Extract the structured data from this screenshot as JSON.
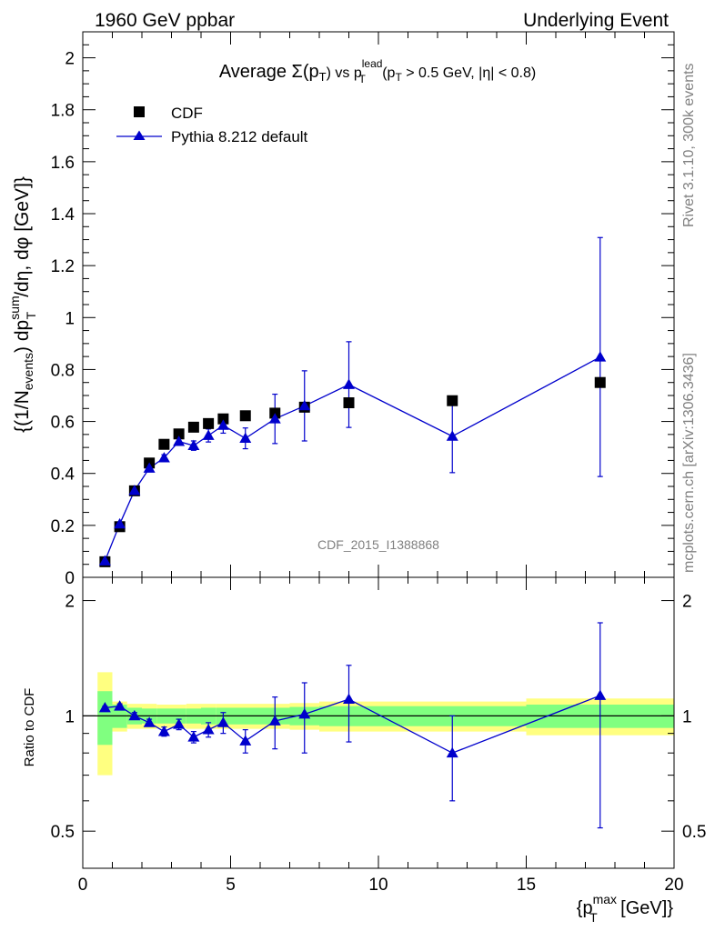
{
  "header": {
    "left": "1960 GeV ppbar",
    "right": "Underlying Event"
  },
  "side_labels": {
    "rivet": "Rivet 3.1.10,  300k events",
    "mcplots": "mcplots.cern.ch [arXiv:1306.3436]"
  },
  "watermark": "CDF_2015_I1388868",
  "colors": {
    "mc": "#0000cc",
    "data": "#000000",
    "band_inner": "#80ff80",
    "band_outer": "#ffff80"
  },
  "chart_data": [
    {
      "type": "scatter",
      "title": "Average Σ(pT) vs pT lead (pT > 0.5 GeV, |η| < 0.8)",
      "title_parts": {
        "main": "Average ",
        "sigma": "Σ(p",
        "sub_t1": "T",
        "close": ") vs p",
        "sup_lead": "lead",
        "sub_t2": "T",
        "cut_open": " (p",
        "sub_t3": "T",
        "cut_rest": " > 0.5 GeV, |η| < 0.8)"
      },
      "ylabel": "{(1/Nevents) dpTsum/dη, dφ [GeV]}",
      "ylabel_parts": {
        "pre": "{(1/N",
        "sub_events": "events",
        "mid": ") dp",
        "sup_sum": "sum",
        "sub_T": "T",
        "post": "/dη, dφ [GeV]}"
      },
      "xlim": [
        0,
        20
      ],
      "ylim": [
        0,
        2.1
      ],
      "xticks": [
        0,
        5,
        10,
        15,
        20
      ],
      "yticks": [
        0,
        0.2,
        0.4,
        0.6,
        0.8,
        1,
        1.2,
        1.4,
        1.6,
        1.8,
        2
      ],
      "ytick_labels": [
        "0",
        "0.2",
        "0.4",
        "0.6",
        "0.8",
        "1",
        "1.2",
        "1.4",
        "1.6",
        "1.8",
        "2"
      ],
      "legend": {
        "position": "top-left",
        "entries": [
          "CDF",
          "Pythia 8.212 default"
        ]
      },
      "series": [
        {
          "name": "CDF",
          "marker": "square",
          "x": [
            0.75,
            1.25,
            1.75,
            2.25,
            2.75,
            3.25,
            3.75,
            4.25,
            4.75,
            5.5,
            6.5,
            7.5,
            9.0,
            12.5,
            17.5
          ],
          "xerr": [
            0.25,
            0.25,
            0.25,
            0.25,
            0.25,
            0.25,
            0.25,
            0.25,
            0.25,
            0.5,
            0.5,
            0.5,
            1.0,
            2.5,
            2.5
          ],
          "y": [
            0.06,
            0.195,
            0.333,
            0.44,
            0.512,
            0.552,
            0.578,
            0.592,
            0.61,
            0.622,
            0.632,
            0.655,
            0.672,
            0.68,
            0.75
          ]
        },
        {
          "name": "Pythia 8.212 default",
          "marker": "triangle",
          "x": [
            0.75,
            1.25,
            1.75,
            2.25,
            2.75,
            3.25,
            3.75,
            4.25,
            4.75,
            5.5,
            6.5,
            7.5,
            9.0,
            12.5,
            17.5
          ],
          "y": [
            0.063,
            0.205,
            0.334,
            0.42,
            0.46,
            0.523,
            0.507,
            0.546,
            0.585,
            0.535,
            0.61,
            0.66,
            0.742,
            0.543,
            0.848
          ],
          "yerr": [
            0.003,
            0.006,
            0.008,
            0.01,
            0.012,
            0.015,
            0.018,
            0.025,
            0.03,
            0.04,
            0.095,
            0.135,
            0.165,
            0.14,
            0.46
          ]
        }
      ]
    },
    {
      "type": "scatter",
      "title": "",
      "ylabel": "Ratio to CDF",
      "xlabel": "{pTmax [GeV]}",
      "xlabel_parts": {
        "pre": "{p",
        "sup_max": "max",
        "sub_T": "T",
        "post": " [GeV]}"
      },
      "xlim": [
        0,
        20
      ],
      "ylim": [
        0.4,
        2.3
      ],
      "xticks": [
        0,
        5,
        10,
        15,
        20
      ],
      "xtick_labels": [
        "0",
        "5",
        "10",
        "15",
        "20"
      ],
      "yticks_major": [
        0.5,
        1,
        2
      ],
      "ytick_labels": [
        "0.5",
        "1",
        "2"
      ],
      "bands": {
        "x_lo": [
          0.5,
          1.0,
          1.5,
          2.0,
          2.5,
          3.0,
          3.5,
          4.0,
          4.5,
          5.0,
          6.0,
          7.0,
          8.0,
          10.0,
          15.0
        ],
        "x_hi": [
          1.0,
          1.5,
          2.0,
          2.5,
          3.0,
          3.5,
          4.0,
          4.5,
          5.0,
          6.0,
          7.0,
          8.0,
          10.0,
          15.0,
          20.0
        ],
        "inner": [
          0.16,
          0.07,
          0.05,
          0.045,
          0.045,
          0.045,
          0.045,
          0.05,
          0.05,
          0.05,
          0.05,
          0.055,
          0.06,
          0.06,
          0.07
        ],
        "outer": [
          0.3,
          0.09,
          0.075,
          0.075,
          0.07,
          0.07,
          0.075,
          0.075,
          0.075,
          0.075,
          0.075,
          0.08,
          0.09,
          0.09,
          0.11
        ]
      },
      "series": [
        {
          "name": "Pythia 8.212 default / CDF",
          "marker": "triangle",
          "x": [
            0.75,
            1.25,
            1.75,
            2.25,
            2.75,
            3.25,
            3.75,
            4.25,
            4.75,
            5.5,
            6.5,
            7.5,
            9.0,
            12.5,
            17.5
          ],
          "y": [
            1.05,
            1.06,
            1.0,
            0.96,
            0.91,
            0.95,
            0.88,
            0.92,
            0.96,
            0.86,
            0.97,
            1.01,
            1.105,
            0.8,
            1.13
          ],
          "yerr": [
            0.01,
            0.015,
            0.02,
            0.02,
            0.025,
            0.03,
            0.03,
            0.04,
            0.06,
            0.06,
            0.15,
            0.21,
            0.25,
            0.2,
            0.62
          ]
        }
      ]
    }
  ]
}
